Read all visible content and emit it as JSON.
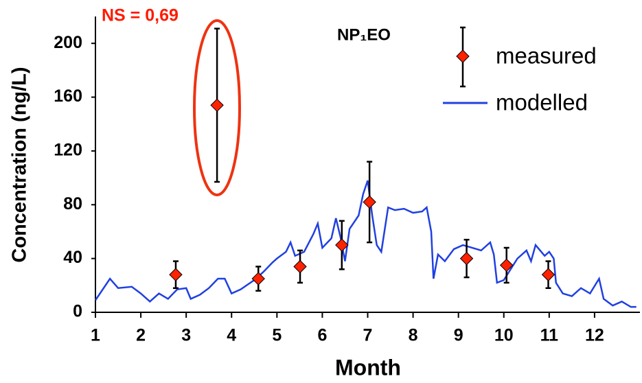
{
  "chart_data": {
    "type": "line",
    "title": "NP₁EO",
    "annotation": "NS = 0,69",
    "x_label": "Month",
    "y_label": "Concentration (ng/L)",
    "xlim": [
      1,
      13
    ],
    "xticks": [
      1,
      2,
      3,
      4,
      5,
      6,
      7,
      8,
      9,
      10,
      11,
      12
    ],
    "ylim": [
      0,
      220
    ],
    "yticks": [
      0,
      40,
      80,
      120,
      160,
      200
    ],
    "grid": false,
    "legend": "upper right",
    "series": [
      {
        "name": "measured",
        "type": "scatter",
        "color": "#ff2200",
        "x": [
          2.77,
          3.68,
          4.59,
          5.51,
          6.43,
          7.04,
          9.18,
          10.06,
          10.98
        ],
        "values": [
          28,
          154,
          25,
          34,
          50,
          82,
          40,
          35,
          28
        ],
        "errors": [
          10,
          57,
          9,
          12,
          18,
          30,
          14,
          13,
          10
        ]
      },
      {
        "name": "modelled",
        "type": "line",
        "color": "#2040e0",
        "x": [
          1,
          1.32,
          1.5,
          1.8,
          2.0,
          2.2,
          2.4,
          2.6,
          2.8,
          3.0,
          3.1,
          3.3,
          3.5,
          3.7,
          3.85,
          4.0,
          4.2,
          4.5,
          4.7,
          4.9,
          5.0,
          5.2,
          5.3,
          5.4,
          5.6,
          5.8,
          5.9,
          6.0,
          6.2,
          6.3,
          6.4,
          6.5,
          6.6,
          6.8,
          6.9,
          7.0,
          7.1,
          7.2,
          7.3,
          7.45,
          7.6,
          7.8,
          8.0,
          8.2,
          8.3,
          8.4,
          8.45,
          8.55,
          8.7,
          8.9,
          9.1,
          9.3,
          9.5,
          9.7,
          9.78,
          9.85,
          10.0,
          10.3,
          10.5,
          10.6,
          10.7,
          10.9,
          11.0,
          11.1,
          11.15,
          11.3,
          11.5,
          11.7,
          11.9,
          12.1,
          12.2,
          12.4,
          12.6,
          12.8,
          12.92
        ],
        "values": [
          9,
          25,
          18,
          19,
          14,
          8,
          14,
          10,
          17,
          18,
          10,
          13,
          18,
          25,
          25,
          14,
          17,
          24,
          30,
          37,
          40,
          45,
          52,
          42,
          45,
          58,
          66,
          48,
          55,
          70,
          56,
          38,
          62,
          72,
          88,
          98,
          72,
          50,
          45,
          78,
          76,
          77,
          74,
          75,
          78,
          60,
          25,
          43,
          38,
          47,
          50,
          48,
          46,
          52,
          43,
          22,
          24,
          40,
          46,
          38,
          50,
          42,
          45,
          40,
          22,
          14,
          12,
          18,
          14,
          25,
          10,
          5,
          8,
          4,
          4
        ]
      }
    ]
  }
}
